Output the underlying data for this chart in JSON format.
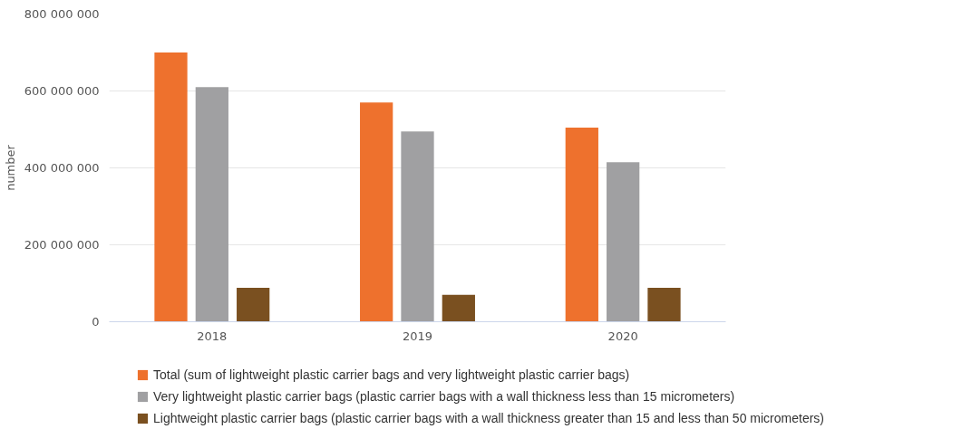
{
  "chart_data": {
    "type": "bar",
    "ylabel": "number",
    "categories": [
      "2018",
      "2019",
      "2020"
    ],
    "series": [
      {
        "name": "Total (sum of lightweight plastic carrier bags and very lightweight plastic carrier bags)",
        "color": "#ee712d",
        "values": [
          700000000,
          570000000,
          505000000
        ]
      },
      {
        "name": "Very lightweight plastic carrier bags (plastic carrier bags with a wall thickness less than 15 micrometers)",
        "color": "#a0a0a2",
        "values": [
          610000000,
          495000000,
          415000000
        ]
      },
      {
        "name": "Lightweight plastic carrier bags (plastic carrier bags with a wall thickness greater than 15 and less than 50 micrometers)",
        "color": "#7a5020",
        "values": [
          88000000,
          70000000,
          88000000
        ]
      }
    ],
    "ylim": [
      0,
      800000000
    ],
    "yticks": [
      {
        "value": 0,
        "label": "0"
      },
      {
        "value": 200000000,
        "label": "200 000 000"
      },
      {
        "value": 400000000,
        "label": "400 000 000"
      },
      {
        "value": 600000000,
        "label": "600 000 000"
      },
      {
        "value": 800000000,
        "label": "800 000 000"
      }
    ],
    "grid": "y",
    "legend": "bottom"
  }
}
